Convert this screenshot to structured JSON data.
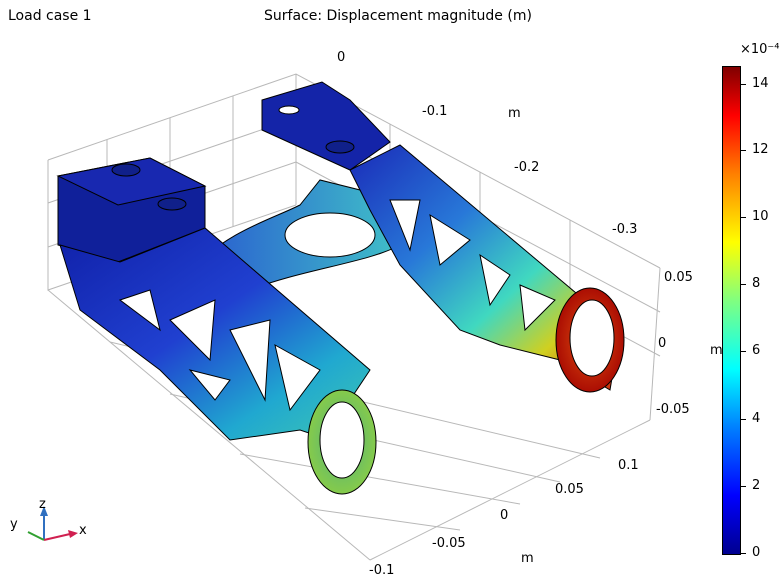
{
  "header": {
    "dataset_title": "Load case 1",
    "plot_title": "Surface: Displacement magnitude (m)"
  },
  "axes": {
    "x_unit": "m",
    "y_unit": "m",
    "z_unit": "m",
    "top_ticks": [
      "0",
      "-0.1",
      "-0.2",
      "-0.3"
    ],
    "right_ticks": [
      "0.05",
      "0",
      "-0.05"
    ],
    "bottom_right_ticks": [
      "0.1",
      "0.05",
      "0",
      "-0.05",
      "-0.1"
    ]
  },
  "triad": {
    "x": "x",
    "y": "y",
    "z": "z"
  },
  "colorbar": {
    "multiplier": "×10⁻⁴",
    "ticks": [
      "14",
      "12",
      "10",
      "8",
      "6",
      "4",
      "2",
      "0"
    ],
    "min": 0,
    "max": 14.6,
    "colors": [
      "#00008f",
      "#0000ff",
      "#0080ff",
      "#00ffff",
      "#80ff80",
      "#ffff00",
      "#ff8000",
      "#ff0000",
      "#800000"
    ]
  }
}
